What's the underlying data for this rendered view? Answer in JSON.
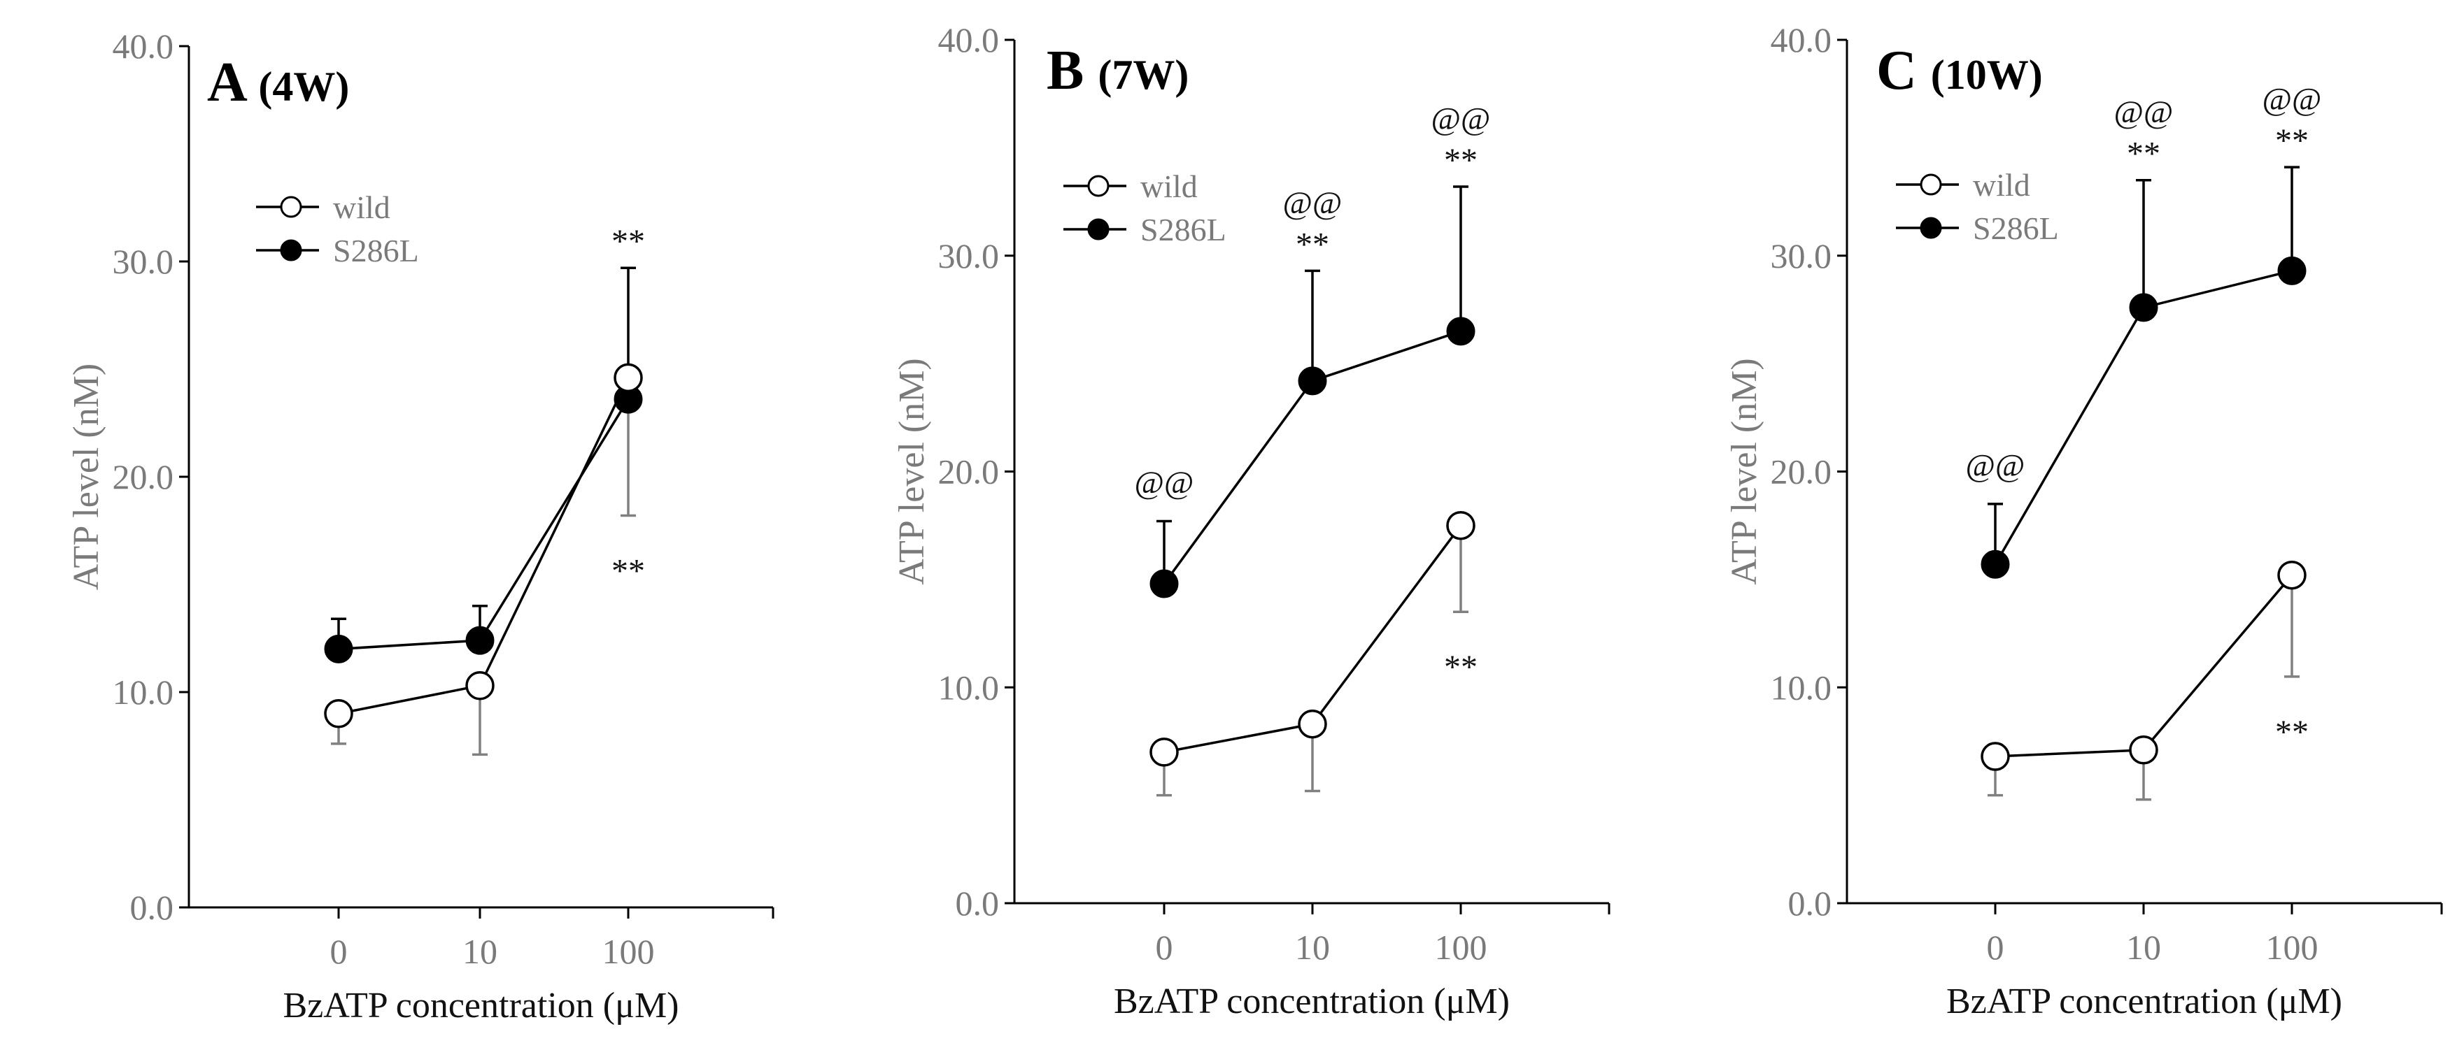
{
  "colors": {
    "axis": "#000000",
    "tick_text": "#7a7a7a",
    "wild_fill": "#ffffff",
    "mutant_fill": "#000000",
    "wild_errorbar": "#808080",
    "mutant_errorbar": "#000000"
  },
  "chart_data": [
    {
      "type": "line",
      "panel": "A",
      "title_letter": "A",
      "title_week": "(4W)",
      "xlabel": "BzATP concentration (μM)",
      "ylabel": "ATP  level (nM)",
      "categories": [
        "0",
        "10",
        "100"
      ],
      "ylim": [
        0,
        40
      ],
      "yticks": [
        "0.0",
        "10.0",
        "20.0",
        "30.0",
        "40.0"
      ],
      "legend": [
        "wild",
        "S286L"
      ],
      "legend_position": "upper-left",
      "series": [
        {
          "name": "wild",
          "values": [
            9.0,
            10.3,
            24.6
          ],
          "error_lower": [
            1.4,
            3.2,
            6.4
          ]
        },
        {
          "name": "S286L",
          "values": [
            12.0,
            12.4,
            23.6
          ],
          "error_upper": [
            1.4,
            1.6,
            6.1
          ]
        }
      ],
      "annotations": [
        {
          "text": "**",
          "series": "S286L",
          "category": "100"
        },
        {
          "text": "**",
          "series": "wild",
          "category": "100"
        }
      ]
    },
    {
      "type": "line",
      "panel": "B",
      "title_letter": "B",
      "title_week": "(7W)",
      "xlabel": "BzATP concentration (μM)",
      "ylabel": "ATP  level (nM)",
      "categories": [
        "0",
        "10",
        "100"
      ],
      "ylim": [
        0,
        40
      ],
      "yticks": [
        "0.0",
        "10.0",
        "20.0",
        "30.0",
        "40.0"
      ],
      "legend": [
        "wild",
        "S286L"
      ],
      "legend_position": "upper-left",
      "series": [
        {
          "name": "wild",
          "values": [
            7.0,
            8.3,
            17.5
          ],
          "error_lower": [
            2.0,
            3.1,
            4.0
          ]
        },
        {
          "name": "S286L",
          "values": [
            14.8,
            24.2,
            26.5
          ],
          "error_upper": [
            2.9,
            5.1,
            6.7
          ]
        }
      ],
      "annotations": [
        {
          "text": "@@",
          "series": "S286L",
          "category": "0"
        },
        {
          "text": "@@",
          "series": "S286L",
          "category": "10"
        },
        {
          "text": "**",
          "series": "S286L",
          "category": "10"
        },
        {
          "text": "@@",
          "series": "S286L",
          "category": "100"
        },
        {
          "text": "**",
          "series": "S286L",
          "category": "100"
        },
        {
          "text": "**",
          "series": "wild",
          "category": "100"
        }
      ]
    },
    {
      "type": "line",
      "panel": "C",
      "title_letter": "C",
      "title_week": "(10W)",
      "xlabel": "BzATP concentration (μM)",
      "ylabel": "ATP  level (nM)",
      "categories": [
        "0",
        "10",
        "100"
      ],
      "ylim": [
        0,
        40
      ],
      "yticks": [
        "0.0",
        "10.0",
        "20.0",
        "30.0",
        "40.0"
      ],
      "legend": [
        "wild",
        "S286L"
      ],
      "legend_position": "upper-left",
      "series": [
        {
          "name": "wild",
          "values": [
            6.8,
            7.1,
            15.2
          ],
          "error_lower": [
            1.8,
            2.3,
            4.7
          ]
        },
        {
          "name": "S286L",
          "values": [
            15.7,
            27.6,
            29.3
          ],
          "error_upper": [
            2.8,
            5.9,
            4.8
          ]
        }
      ],
      "annotations": [
        {
          "text": "@@",
          "series": "S286L",
          "category": "0"
        },
        {
          "text": "@@",
          "series": "S286L",
          "category": "10"
        },
        {
          "text": "**",
          "series": "S286L",
          "category": "10"
        },
        {
          "text": "@@",
          "series": "S286L",
          "category": "100"
        },
        {
          "text": "**",
          "series": "S286L",
          "category": "100"
        },
        {
          "text": "**",
          "series": "wild",
          "category": "100"
        }
      ]
    }
  ]
}
